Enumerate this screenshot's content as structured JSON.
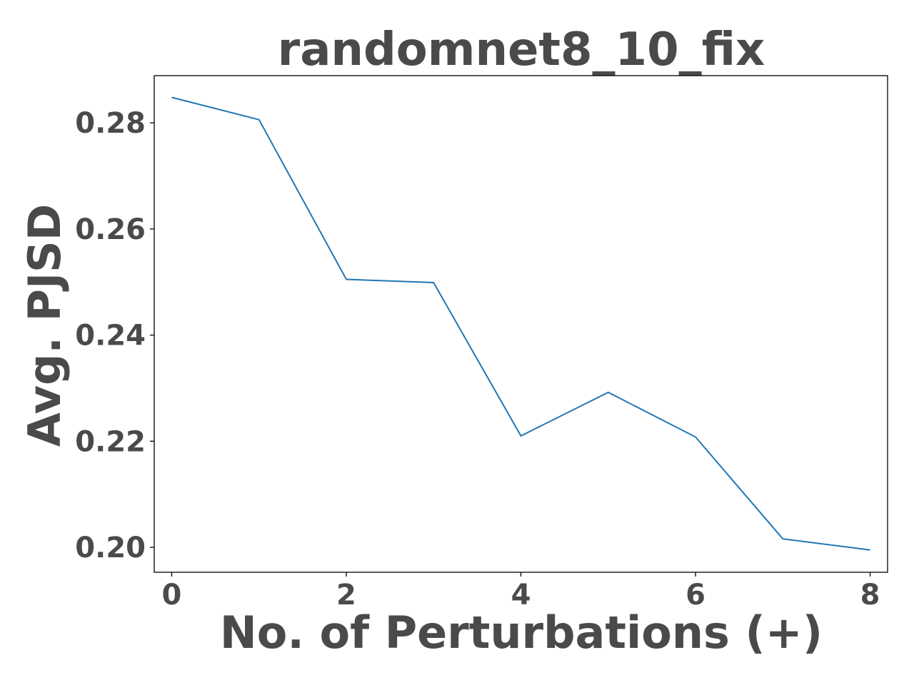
{
  "chart_data": {
    "type": "line",
    "title": "randomnet8_10_fix",
    "xlabel": "No. of Perturbations (+)",
    "ylabel": "Avg. PJSD",
    "x": [
      0,
      1,
      2,
      3,
      4,
      5,
      6,
      7,
      8
    ],
    "series": [
      {
        "values": [
          0.2848,
          0.2806,
          0.2505,
          0.2499,
          0.221,
          0.2292,
          0.2208,
          0.2016,
          0.1995
        ],
        "color": "#1f77b4"
      }
    ],
    "xlim": [
      -0.2,
      8.2
    ],
    "ylim": [
      0.1953,
      0.2889
    ],
    "xticks": [
      0,
      2,
      4,
      6,
      8
    ],
    "xtick_labels": [
      "0",
      "2",
      "4",
      "6",
      "8"
    ],
    "yticks": [
      0.2,
      0.22,
      0.24,
      0.26,
      0.28
    ],
    "ytick_labels": [
      "0.20",
      "0.22",
      "0.24",
      "0.26",
      "0.28"
    ],
    "grid": false,
    "legend": "none"
  }
}
